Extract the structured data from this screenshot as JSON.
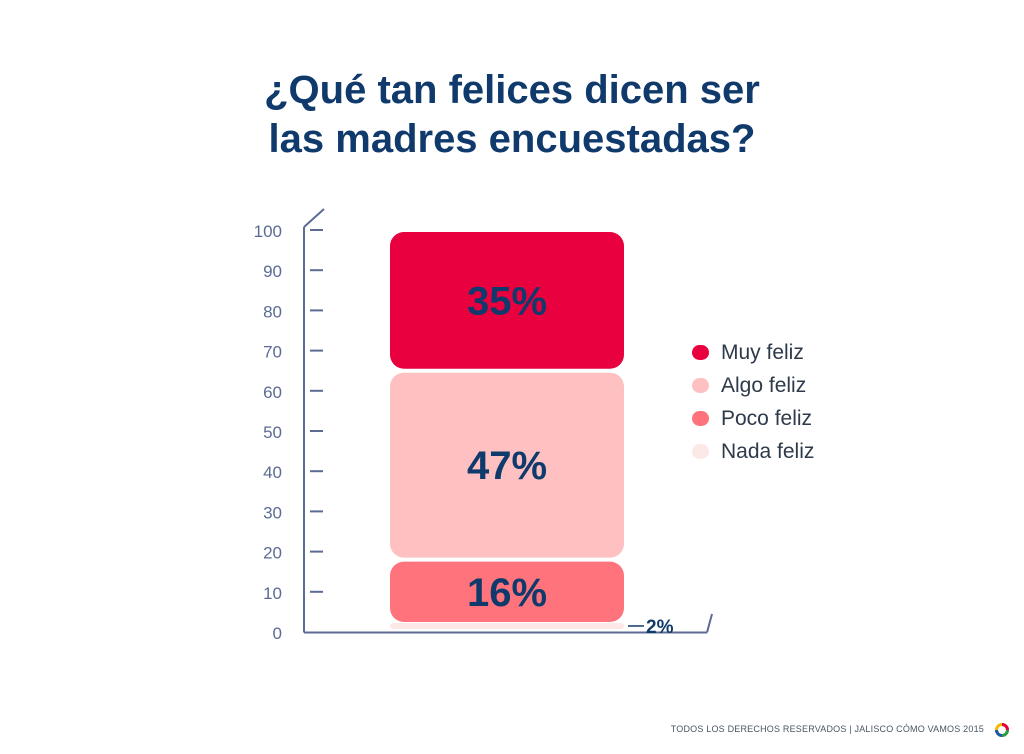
{
  "title_lines": [
    "¿Qué tan felices dicen ser",
    "las madres encuestadas?"
  ],
  "footer": {
    "text": "TODOS LOS DERECHOS RESERVADOS  |  JALISCO CÓMO VAMOS 2015"
  },
  "colors": {
    "axis": "#5b6b93",
    "value_text": "#0f3a6b",
    "muy_feliz": "#e8003f",
    "algo_feliz": "#fec0c0",
    "poco_feliz": "#ff747c",
    "nada_feliz": "#fde8e8"
  },
  "chart_data": {
    "type": "bar",
    "stacked": true,
    "categories": [
      ""
    ],
    "ylim": [
      0,
      100
    ],
    "yticks": [
      "0",
      "10",
      "20",
      "30",
      "40",
      "50",
      "60",
      "70",
      "80",
      "90",
      "100"
    ],
    "grid": false,
    "legend_position": "right",
    "series": [
      {
        "name": "Nada feliz",
        "value": 2,
        "label": "2%"
      },
      {
        "name": "Poco feliz",
        "value": 16,
        "label": "16%"
      },
      {
        "name": "Algo feliz",
        "value": 47,
        "label": "47%"
      },
      {
        "name": "Muy feliz",
        "value": 35,
        "label": "35%"
      }
    ]
  }
}
